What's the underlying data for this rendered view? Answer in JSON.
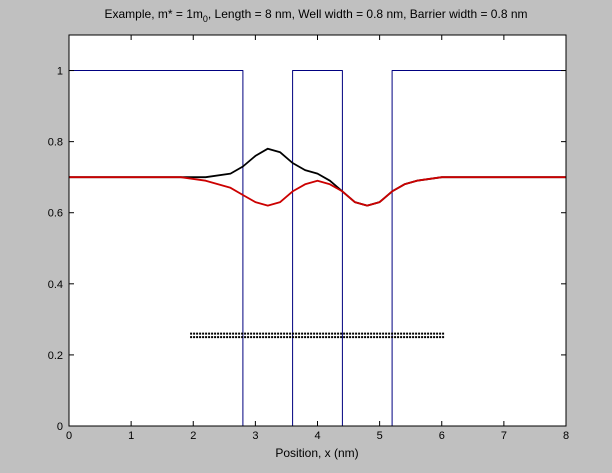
{
  "chart_data": {
    "type": "line",
    "title": {
      "main": "Example, m* = 1m",
      "sub": "0",
      "rest": ", Length = 8 nm, Well width = 0.8 nm, Barrier width = 0.8 nm"
    },
    "xlabel": "Position, x (nm)",
    "ylabel": "",
    "xlim": [
      0,
      8
    ],
    "ylim": [
      0,
      1.1
    ],
    "xticks": [
      "0",
      "1",
      "2",
      "3",
      "4",
      "5",
      "6",
      "7",
      "8"
    ],
    "yticks": [
      "0",
      "0.2",
      "0.4",
      "0.6",
      "0.8",
      "1"
    ],
    "grid": false,
    "legend": "none",
    "series": [
      {
        "color": "#000080",
        "style": "solid",
        "x": [
          0,
          2.8,
          2.8,
          3.6,
          3.6,
          4.4,
          4.4,
          5.2,
          5.2,
          8
        ],
        "y": [
          1,
          1,
          0,
          0,
          1,
          1,
          0,
          0,
          1,
          1
        ]
      },
      {
        "color": "#000000",
        "style": "solid",
        "x": [
          0,
          1.8,
          2.2,
          2.6,
          2.8,
          3.0,
          3.2,
          3.4,
          3.6,
          3.8,
          4.0,
          4.2,
          4.4,
          4.6,
          4.8,
          5.0,
          5.2,
          5.4,
          5.6,
          6.0,
          6.5,
          8
        ],
        "y": [
          0.7,
          0.7,
          0.7,
          0.71,
          0.73,
          0.76,
          0.78,
          0.77,
          0.74,
          0.72,
          0.71,
          0.69,
          0.66,
          0.63,
          0.62,
          0.63,
          0.66,
          0.68,
          0.69,
          0.7,
          0.7,
          0.7
        ]
      },
      {
        "color": "#cc0000",
        "style": "solid",
        "x": [
          0,
          1.8,
          2.2,
          2.6,
          2.8,
          3.0,
          3.2,
          3.4,
          3.6,
          3.8,
          4.0,
          4.2,
          4.4,
          4.6,
          4.8,
          5.0,
          5.2,
          5.4,
          5.6,
          6.0,
          6.5,
          8
        ],
        "y": [
          0.7,
          0.7,
          0.69,
          0.67,
          0.65,
          0.63,
          0.62,
          0.63,
          0.66,
          0.68,
          0.69,
          0.68,
          0.66,
          0.63,
          0.62,
          0.63,
          0.66,
          0.68,
          0.69,
          0.7,
          0.7,
          0.7
        ]
      },
      {
        "color": "#000000",
        "style": "dotted",
        "x": [
          1.95,
          6.05
        ],
        "y": [
          0.26,
          0.26
        ]
      },
      {
        "color": "#000000",
        "style": "dotted",
        "x": [
          1.95,
          6.05
        ],
        "y": [
          0.25,
          0.25
        ]
      }
    ]
  }
}
